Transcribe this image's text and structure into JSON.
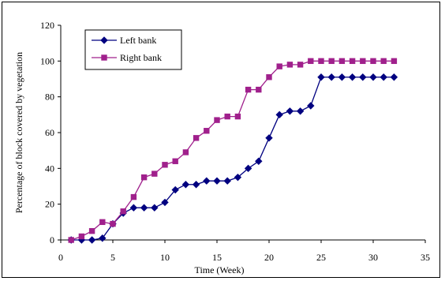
{
  "chart_data": {
    "type": "line",
    "title": "",
    "xlabel": "Time (Week)",
    "ylabel": "Percentage of block covered by vegetation",
    "xlim": [
      0,
      35
    ],
    "ylim": [
      0,
      120
    ],
    "xticks": [
      0,
      5,
      10,
      15,
      20,
      25,
      30,
      35
    ],
    "yticks": [
      0,
      20,
      40,
      60,
      80,
      100,
      120
    ],
    "grid": false,
    "legend_position": "top-left",
    "series": [
      {
        "name": "Left bank",
        "color": "#000080",
        "marker": "diamond",
        "x": [
          1,
          2,
          3,
          4,
          5,
          6,
          7,
          8,
          9,
          10,
          11,
          12,
          13,
          14,
          15,
          16,
          17,
          18,
          19,
          20,
          21,
          22,
          23,
          24,
          25,
          26,
          27,
          28,
          29,
          30,
          31,
          32
        ],
        "y": [
          0,
          0,
          0,
          1,
          9,
          15,
          18,
          18,
          18,
          21,
          28,
          31,
          31,
          33,
          33,
          33,
          35,
          40,
          44,
          57,
          70,
          72,
          72,
          75,
          91,
          91,
          91,
          91,
          91,
          91,
          91,
          91
        ]
      },
      {
        "name": "Right bank",
        "color": "#a0208c",
        "marker": "square",
        "x": [
          1,
          2,
          3,
          4,
          5,
          6,
          7,
          8,
          9,
          10,
          11,
          12,
          13,
          14,
          15,
          16,
          17,
          18,
          19,
          20,
          21,
          22,
          23,
          24,
          25,
          26,
          27,
          28,
          29,
          30,
          31,
          32
        ],
        "y": [
          0,
          2,
          5,
          10,
          9,
          16,
          24,
          35,
          37,
          42,
          44,
          49,
          57,
          61,
          67,
          69,
          69,
          84,
          84,
          91,
          97,
          98,
          98,
          100,
          100,
          100,
          100,
          100,
          100,
          100,
          100,
          100
        ]
      }
    ]
  }
}
